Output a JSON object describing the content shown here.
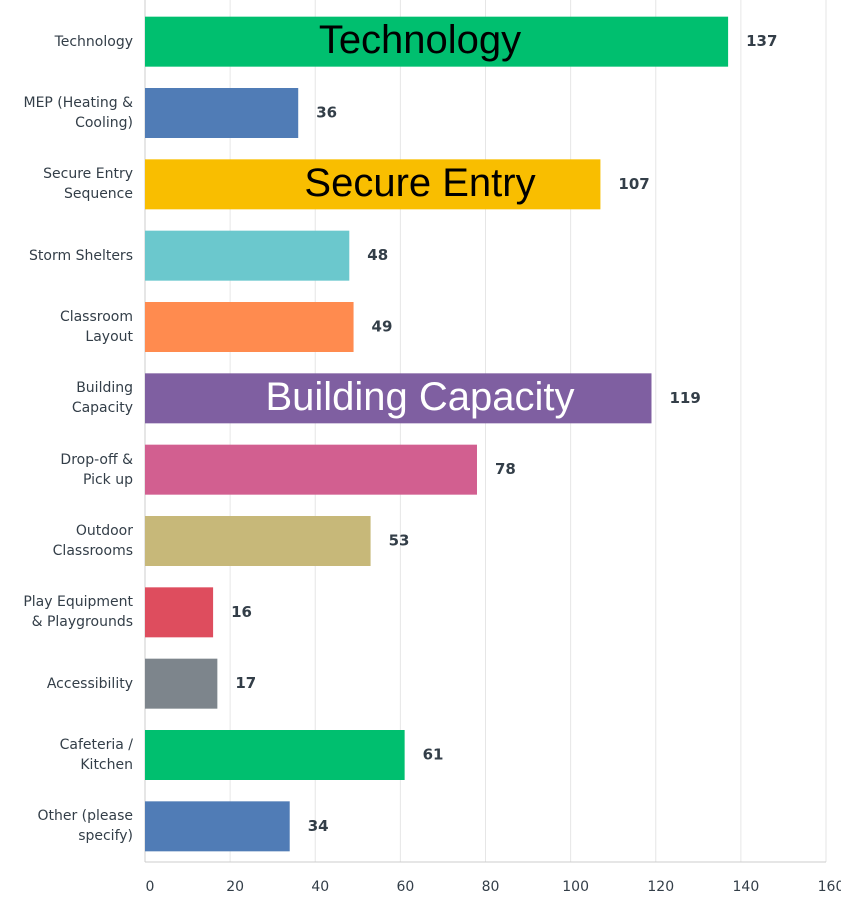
{
  "chart_data": {
    "type": "bar",
    "orientation": "horizontal",
    "categories": [
      "Technology",
      "MEP (Heating &\nCooling)",
      "Secure Entry\nSequence",
      "Storm Shelters",
      "Classroom\nLayout",
      "Building\nCapacity",
      "Drop-off &\nPick up",
      "Outdoor\nClassrooms",
      "Play Equipment\n& Playgrounds",
      "Accessibility",
      "Cafeteria /\nKitchen",
      "Other (please\nspecify)"
    ],
    "values": [
      137,
      36,
      107,
      48,
      49,
      119,
      78,
      53,
      16,
      17,
      61,
      34
    ],
    "colors": [
      "#00bf6f",
      "#507cb6",
      "#f9be00",
      "#6bc8cd",
      "#ff8b4f",
      "#7f5fa1",
      "#d25f90",
      "#c7b879",
      "#de4d5e",
      "#7d858c",
      "#00bf6f",
      "#507cb6"
    ],
    "xlim": [
      0,
      160
    ],
    "xticks": [
      0,
      20,
      40,
      60,
      80,
      100,
      120,
      140,
      160
    ],
    "grid": true,
    "annotations": [
      {
        "text": "Technology",
        "category": 0,
        "color": "#000000"
      },
      {
        "text": "Secure Entry",
        "category": 2,
        "color": "#000000"
      },
      {
        "text": "Building Capacity",
        "category": 5,
        "color": "#ffffff"
      }
    ]
  }
}
